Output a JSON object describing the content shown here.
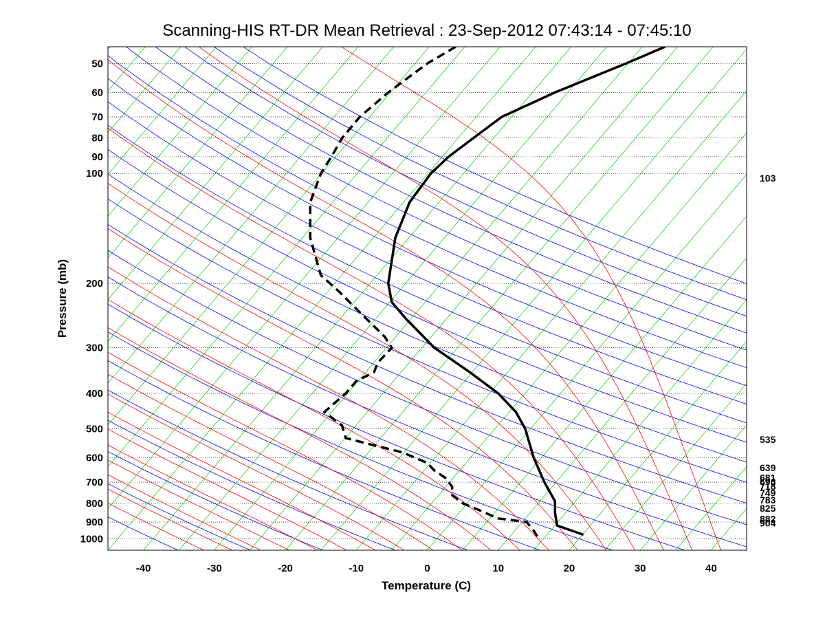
{
  "chart_data": {
    "type": "line",
    "title": "Scanning-HIS RT-DR Mean Retrieval : 23-Sep-2012 07:43:14 - 07:45:10",
    "xlabel": "Temperature (C)",
    "ylabel": "Pressure (mb)",
    "xlim": [
      -45,
      45
    ],
    "ylim": [
      1075,
      45
    ],
    "y_scale": "log",
    "x_ticks": [
      -40,
      -30,
      -20,
      -10,
      0,
      10,
      20,
      30,
      40
    ],
    "y_ticks": [
      50,
      60,
      70,
      80,
      90,
      100,
      200,
      300,
      400,
      500,
      600,
      700,
      800,
      900,
      1000
    ],
    "grid": "horizontal dotted at pressure ticks",
    "colors": {
      "dry_adiabat": "#0000ff",
      "isotherm": "#00cc00",
      "moist_adiabat": "#ff0000",
      "profile": "#000000",
      "grid": "#000000"
    },
    "series": [
      {
        "style": "solid",
        "points": [
          [
            33.5,
            45
          ],
          [
            28.0,
            50
          ],
          [
            18.0,
            60
          ],
          [
            10.5,
            70
          ],
          [
            6.5,
            80
          ],
          [
            3.0,
            90
          ],
          [
            0.5,
            100
          ],
          [
            -2.5,
            120
          ],
          [
            -4.5,
            150
          ],
          [
            -5.5,
            200
          ],
          [
            -5.0,
            225
          ],
          [
            -3.0,
            250
          ],
          [
            1.0,
            300
          ],
          [
            6.0,
            350
          ],
          [
            10.0,
            400
          ],
          [
            12.5,
            450
          ],
          [
            13.8,
            500
          ],
          [
            15.0,
            600
          ],
          [
            16.5,
            700
          ],
          [
            18.0,
            790
          ],
          [
            18.0,
            850
          ],
          [
            18.3,
            920
          ],
          [
            22.0,
            975
          ]
        ]
      },
      {
        "style": "dashed",
        "points": [
          [
            4.0,
            45
          ],
          [
            0.0,
            50
          ],
          [
            -5.5,
            60
          ],
          [
            -9.5,
            70
          ],
          [
            -12.0,
            80
          ],
          [
            -13.5,
            90
          ],
          [
            -15.0,
            100
          ],
          [
            -16.5,
            120
          ],
          [
            -16.5,
            150
          ],
          [
            -15.0,
            190
          ],
          [
            -12.5,
            210
          ],
          [
            -9.5,
            240
          ],
          [
            -6.0,
            280
          ],
          [
            -5.0,
            300
          ],
          [
            -7.0,
            330
          ],
          [
            -7.5,
            350
          ],
          [
            -10.0,
            370
          ],
          [
            -11.5,
            400
          ],
          [
            -14.5,
            450
          ],
          [
            -12.0,
            490
          ],
          [
            -11.5,
            530
          ],
          [
            -7.5,
            555
          ],
          [
            -3.5,
            580
          ],
          [
            0.0,
            620
          ],
          [
            1.0,
            650
          ],
          [
            2.5,
            680
          ],
          [
            3.5,
            720
          ],
          [
            3.5,
            760
          ],
          [
            5.0,
            800
          ],
          [
            7.0,
            830
          ],
          [
            10.0,
            880
          ],
          [
            14.0,
            900
          ],
          [
            15.0,
            950
          ],
          [
            15.5,
            985
          ]
        ]
      }
    ],
    "right_labels": [
      "103",
      "535",
      "639",
      "681",
      "696",
      "718",
      "749",
      "783",
      "825",
      "882",
      "904"
    ]
  }
}
